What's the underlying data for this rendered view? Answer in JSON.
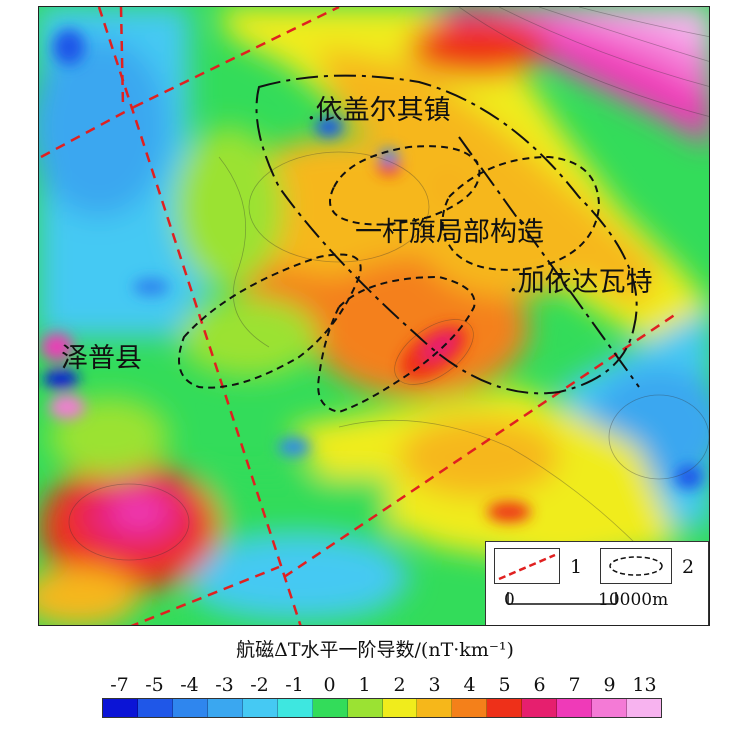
{
  "map": {
    "labels": {
      "town_1": ".依盖尔其镇",
      "local_structure": "一杆旗局部构造",
      "town_2": ".加依达瓦特",
      "county": "泽普县"
    },
    "legend": {
      "fault_number": "1",
      "anomaly_outline_number": "2",
      "scale_start": "0",
      "scale_end": "10000m"
    },
    "colors": {
      "fault": "#e02020",
      "outline": "#111111"
    }
  },
  "colorbar": {
    "title": "航磁ΔT水平一阶导数/(nT·km⁻¹)",
    "tick_labels": [
      "-7",
      "-5",
      "-4",
      "-3",
      "-2",
      "-1",
      "0",
      "1",
      "2",
      "3",
      "4",
      "5",
      "6",
      "7",
      "9",
      "13"
    ],
    "colors": [
      "#0b14d6",
      "#1f57e8",
      "#2f86ee",
      "#3aa7f0",
      "#45c9f3",
      "#3ee7e0",
      "#33dc5a",
      "#9be233",
      "#f0ec1c",
      "#f6b71a",
      "#f4801a",
      "#ee3019",
      "#e61f6e",
      "#ef3ab8",
      "#f47ad6",
      "#f7b3ef"
    ]
  }
}
